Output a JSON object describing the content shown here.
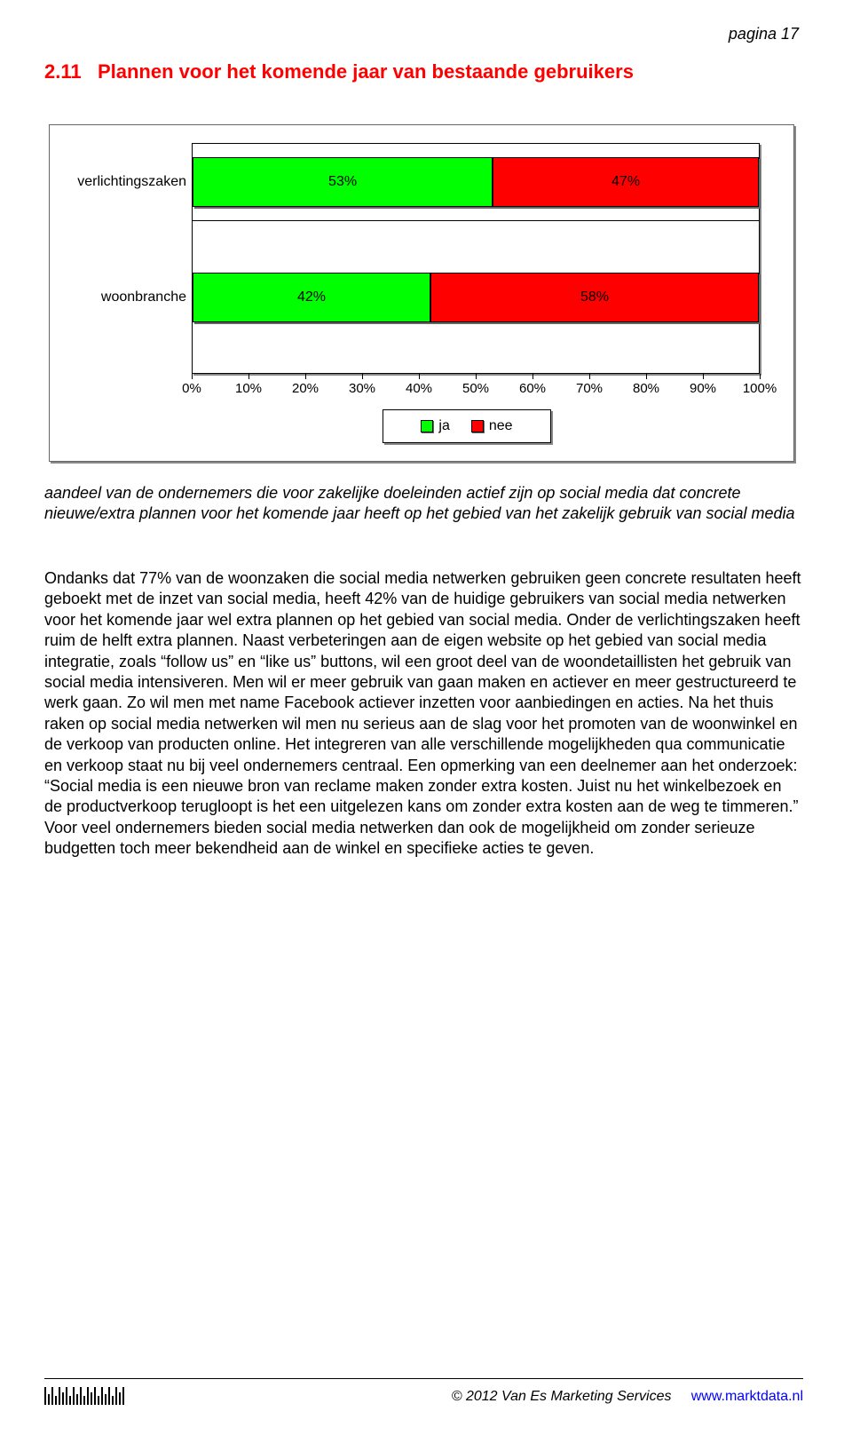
{
  "page_number": "pagina 17",
  "heading": {
    "number": "2.11",
    "title": "Plannen voor het komende jaar van bestaande gebruikers"
  },
  "chart": {
    "type": "stacked-bar-horizontal",
    "categories": [
      "verlichtingszaken",
      "woonbranche"
    ],
    "series": [
      {
        "name": "ja",
        "color": "#00ff00",
        "values": [
          53,
          42
        ],
        "labels": [
          "53%",
          "42%"
        ]
      },
      {
        "name": "nee",
        "color": "#ff0000",
        "values": [
          47,
          58
        ],
        "labels": [
          "47%",
          "58%"
        ]
      }
    ],
    "x_axis": {
      "min": 0,
      "max": 100,
      "step": 10,
      "tick_labels": [
        "0%",
        "10%",
        "20%",
        "30%",
        "40%",
        "50%",
        "60%",
        "70%",
        "80%",
        "90%",
        "100%"
      ]
    },
    "plot_background": "#ffffff",
    "border_color": "#000000",
    "shadow_color": "#888888",
    "label_fontsize": 16,
    "legend": {
      "items": [
        "ja",
        "nee"
      ]
    }
  },
  "caption": "aandeel van de ondernemers die voor zakelijke doeleinden actief zijn op social media dat concrete nieuwe/extra plannen voor het komende jaar heeft op het gebied van het zakelijk gebruik van social media",
  "body": "Ondanks dat 77% van de woonzaken die social media netwerken gebruiken geen concrete resultaten heeft geboekt met de inzet van social media, heeft 42% van de huidige gebruikers van social media netwerken voor het komende jaar wel extra plannen op het gebied van social media. Onder de verlichtingszaken heeft ruim de helft extra plannen. Naast verbeteringen aan de eigen website op het gebied van social media integratie, zoals “follow us” en “like us” buttons, wil een groot deel van de woondetaillisten het gebruik van social media intensiveren. Men wil er meer gebruik van gaan maken en actiever en meer gestructureerd te werk gaan. Zo wil men met name Facebook actiever inzetten voor aanbiedingen en acties. Na het thuis raken op social media netwerken wil men nu serieus aan de slag voor het promoten van de woonwinkel en de verkoop van producten online. Het integreren van alle verschillende mogelijkheden qua communicatie en verkoop staat nu bij veel ondernemers centraal. Een opmerking van een deelnemer aan het onderzoek: “Social media is een nieuwe bron van reclame maken zonder extra kosten. Juist nu het winkelbezoek en de productverkoop terugloopt is het een uitgelezen kans om zonder extra kosten aan de weg te timmeren.” Voor veel ondernemers bieden social media netwerken dan ook de mogelijkheid om zonder serieuze budgetten toch meer bekendheid aan de winkel en specifieke acties te geven.",
  "footer": {
    "copyright": "© 2012 Van Es Marketing Services",
    "url": "www.marktdata.nl"
  },
  "colors": {
    "red": "#ff0000",
    "green": "#00ff00",
    "link": "#0000ff",
    "text": "#000000"
  }
}
